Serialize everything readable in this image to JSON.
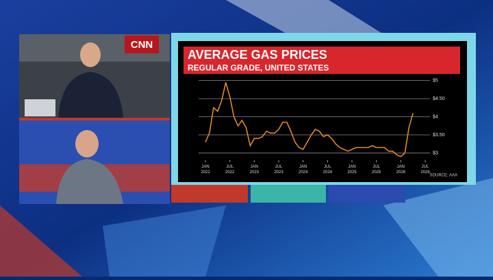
{
  "logo": "CNN",
  "chart_data": {
    "type": "line",
    "title": "AVERAGE GAS PRICES",
    "subtitle": "REGULAR GRADE, UNITED STATES",
    "source": "SOURCE: AAA",
    "x": [
      "2022-01",
      "2022-02",
      "2022-03",
      "2022-04",
      "2022-05",
      "2022-06",
      "2022-07",
      "2022-08",
      "2022-09",
      "2022-10",
      "2022-11",
      "2022-12",
      "2023-01",
      "2023-02",
      "2023-03",
      "2023-04",
      "2023-05",
      "2023-06",
      "2023-07",
      "2023-08",
      "2023-09",
      "2023-10",
      "2023-11",
      "2023-12",
      "2024-01",
      "2024-02",
      "2024-03",
      "2024-04",
      "2024-05",
      "2024-06",
      "2024-07",
      "2024-08",
      "2024-09",
      "2024-10",
      "2024-11",
      "2024-12",
      "2025-01",
      "2025-02",
      "2025-03",
      "2025-04",
      "2025-05",
      "2025-06",
      "2025-07",
      "2025-08",
      "2025-09",
      "2025-10",
      "2025-11",
      "2025-12",
      "2026-01",
      "2026-02",
      "2026-03",
      "2026-04"
    ],
    "series": [
      {
        "name": "Regular grade",
        "color": "#e08a2a",
        "values": [
          3.3,
          3.55,
          4.25,
          4.15,
          4.45,
          4.95,
          4.55,
          4.0,
          3.75,
          3.9,
          3.7,
          3.2,
          3.4,
          3.4,
          3.45,
          3.6,
          3.55,
          3.55,
          3.65,
          3.85,
          3.85,
          3.6,
          3.3,
          3.15,
          3.1,
          3.3,
          3.5,
          3.65,
          3.6,
          3.45,
          3.5,
          3.4,
          3.25,
          3.15,
          3.1,
          3.05,
          3.1,
          3.15,
          3.15,
          3.15,
          3.15,
          3.2,
          3.15,
          3.15,
          3.15,
          3.05,
          3.05,
          2.95,
          2.9,
          3.0,
          3.7,
          4.1
        ]
      }
    ],
    "xlim": [
      "2022-01",
      "2026-07"
    ],
    "xticks": [
      {
        "value": "2022-01",
        "label": "JAN 2022"
      },
      {
        "value": "2022-07",
        "label": "JUL 2022"
      },
      {
        "value": "2023-01",
        "label": "JAN 2023"
      },
      {
        "value": "2023-07",
        "label": "JUL 2023"
      },
      {
        "value": "2024-01",
        "label": "JAN 2024"
      },
      {
        "value": "2024-07",
        "label": "JUL 2024"
      },
      {
        "value": "2025-01",
        "label": "JAN 2025"
      },
      {
        "value": "2025-07",
        "label": "JUL 2025"
      },
      {
        "value": "2026-01",
        "label": "JAN 2026"
      },
      {
        "value": "2026-07",
        "label": "JUL 2026"
      }
    ],
    "ylim": [
      2.8,
      5.05
    ],
    "yticks": [
      {
        "value": 3,
        "label": "$3"
      },
      {
        "value": 3.5,
        "label": "$3.50"
      },
      {
        "value": 4,
        "label": "$4"
      },
      {
        "value": 4.5,
        "label": "$4.50"
      },
      {
        "value": 5,
        "label": "$5"
      }
    ],
    "grid": true
  }
}
